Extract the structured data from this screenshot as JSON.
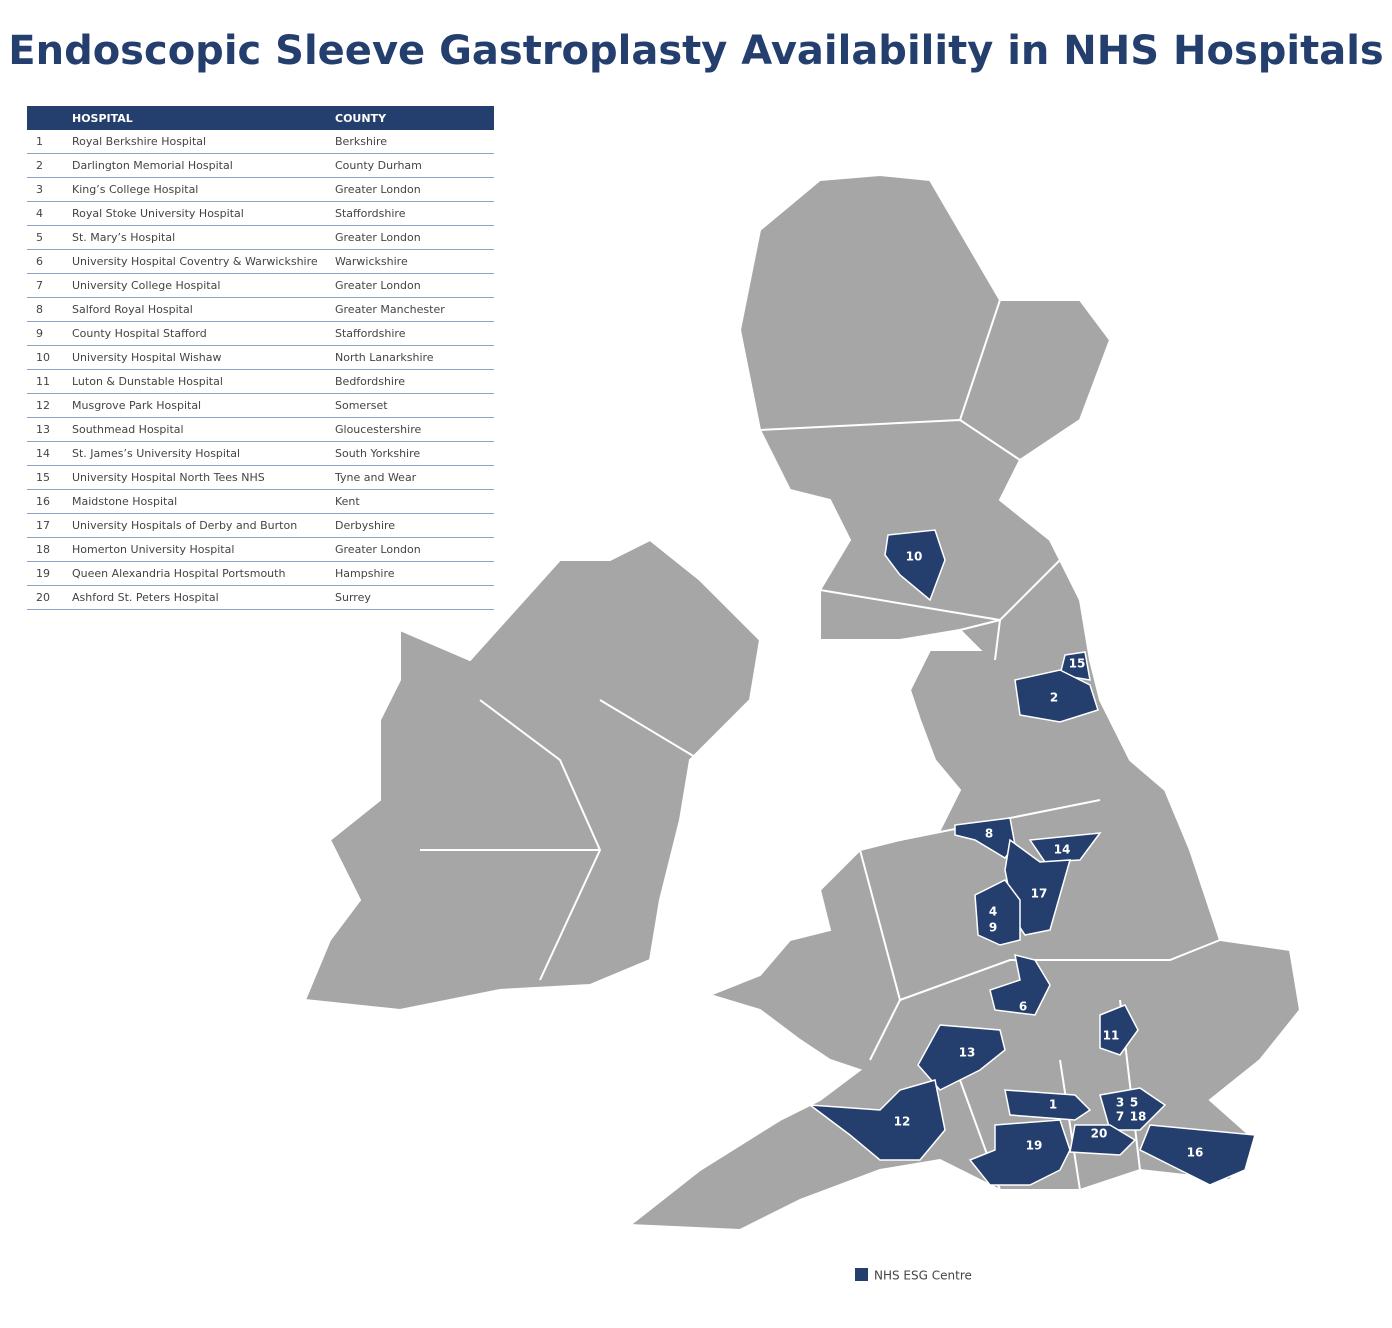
{
  "header": {
    "title": "Endoscopic Sleeve Gastroplasty Availability in NHS Hospitals"
  },
  "table": {
    "columns": [
      "HOSPITAL",
      "COUNTY"
    ],
    "rows": [
      [
        "1",
        "Royal Berkshire Hospital",
        "Berkshire"
      ],
      [
        "2",
        "Darlington Memorial Hospital",
        "County Durham"
      ],
      [
        "3",
        "King’s College Hospital",
        "Greater London"
      ],
      [
        "4",
        "Royal Stoke University Hospital",
        "Staffordshire"
      ],
      [
        "5",
        "St. Mary’s Hospital",
        "Greater London"
      ],
      [
        "6",
        "University Hospital Coventry & Warwickshire",
        "Warwickshire"
      ],
      [
        "7",
        "University College Hospital",
        "Greater London"
      ],
      [
        "8",
        "Salford Royal Hospital",
        "Greater Manchester"
      ],
      [
        "9",
        "County Hospital Stafford",
        "Staffordshire"
      ],
      [
        "10",
        "University Hospital Wishaw",
        "North Lanarkshire"
      ],
      [
        "11",
        "Luton & Dunstable Hospital",
        "Bedfordshire"
      ],
      [
        "12",
        "Musgrove Park Hospital",
        "Somerset"
      ],
      [
        "13",
        "Southmead Hospital",
        "Gloucestershire"
      ],
      [
        "14",
        "St. James’s University Hospital",
        "South Yorkshire"
      ],
      [
        "15",
        "University Hospital North Tees NHS",
        "Tyne and Wear"
      ],
      [
        "16",
        "Maidstone Hospital",
        "Kent"
      ],
      [
        "17",
        "University Hospitals of Derby and Burton",
        "Derbyshire"
      ],
      [
        "18",
        "Homerton University Hospital",
        "Greater London"
      ],
      [
        "19",
        "Queen Alexandria Hospital Portsmouth",
        "Hampshire"
      ],
      [
        "20",
        "Ashford St. Peters Hospital",
        "Surrey"
      ]
    ]
  },
  "map": {
    "labels": [
      "10",
      "15",
      "2",
      "8",
      "14",
      "17",
      "4",
      "9",
      "6",
      "11",
      "13",
      "12",
      "1",
      "3",
      "5",
      "7",
      "18",
      "20",
      "19",
      "16"
    ]
  },
  "legend": {
    "label": "NHS ESG Centre"
  }
}
